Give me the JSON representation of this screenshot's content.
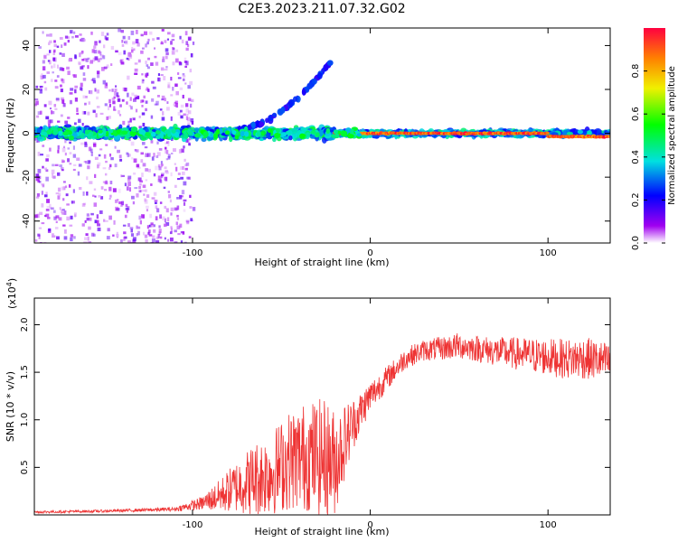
{
  "title": "C2E3.2023.211.07.32.G02",
  "chart_data": [
    {
      "type": "heatmap",
      "xlabel": "Height of straight line (km)",
      "ylabel": "Frequency (Hz)",
      "xlim": [
        -189,
        135
      ],
      "ylim": [
        -50,
        48
      ],
      "x_ticks": [
        -100,
        0,
        100
      ],
      "x_tick_labels": [
        "-100",
        "0",
        "100"
      ],
      "y_ticks": [
        -40,
        -20,
        0,
        20,
        40
      ],
      "y_tick_labels": [
        "-40",
        "-20",
        "0",
        "20",
        "40"
      ],
      "colorbar": {
        "label": "Normalized spectral amplitude",
        "range": [
          0,
          1
        ],
        "ticks": [
          0.0,
          0.2,
          0.4,
          0.6,
          0.8
        ],
        "tick_labels": [
          "0.0",
          "0.2",
          "0.4",
          "0.6",
          "0.8"
        ]
      },
      "features": [
        {
          "name": "main_band",
          "x": [
            -189,
            135
          ],
          "freq_hz": [
            0,
            0
          ],
          "amplitude_range": [
            0.2,
            0.5
          ]
        },
        {
          "name": "strong_line",
          "x": [
            -20,
            135
          ],
          "freq_hz": [
            0,
            0
          ],
          "amplitude_range": [
            0.8,
            1.0
          ]
        },
        {
          "name": "rising_branch",
          "x": [
            -75,
            -22
          ],
          "freq_hz": [
            2,
            33
          ],
          "amplitude_range": [
            0.15,
            0.3
          ]
        },
        {
          "name": "diffuse_noise",
          "x": [
            -189,
            -100
          ],
          "freq_hz": [
            -50,
            48
          ],
          "amplitude_range": [
            0.02,
            0.15
          ]
        }
      ],
      "grid": false
    },
    {
      "type": "line",
      "xlabel": "Height of straight line (km)",
      "ylabel": "SNR (10 * v/v)",
      "y_multiplier_label": "(x10",
      "y_multiplier_exp": "4",
      "y_multiplier_close": ")",
      "color": "#ee3333",
      "xlim": [
        -189,
        135
      ],
      "ylim": [
        0,
        22800
      ],
      "x_ticks": [
        -100,
        0,
        100
      ],
      "x_tick_labels": [
        "-100",
        "0",
        "100"
      ],
      "y_ticks": [
        5000,
        10000,
        15000,
        20000
      ],
      "y_tick_labels": [
        "0.5",
        "1.0",
        "1.5",
        "2.0"
      ],
      "x": [
        -189,
        -150,
        -110,
        -95,
        -85,
        -75,
        -65,
        -55,
        -45,
        -35,
        -25,
        -20,
        -15,
        -10,
        -5,
        0,
        10,
        20,
        30,
        40,
        50,
        60,
        70,
        80,
        90,
        100,
        110,
        120,
        130,
        135
      ],
      "values": [
        300,
        400,
        600,
        1200,
        2000,
        3000,
        3800,
        4500,
        5800,
        6200,
        6000,
        5500,
        7500,
        9500,
        11000,
        12500,
        14500,
        16500,
        17300,
        17500,
        17800,
        17500,
        17200,
        17000,
        16800,
        16600,
        16400,
        16500,
        16200,
        16000
      ],
      "noise_amplitude": [
        100,
        100,
        150,
        500,
        1200,
        2000,
        2800,
        3200,
        3800,
        4200,
        4500,
        4000,
        3000,
        2000,
        1500,
        1200,
        900,
        800,
        800,
        900,
        1000,
        1000,
        1100,
        1200,
        1300,
        1400,
        1500,
        1600,
        1500,
        1400
      ],
      "grid": false
    }
  ]
}
